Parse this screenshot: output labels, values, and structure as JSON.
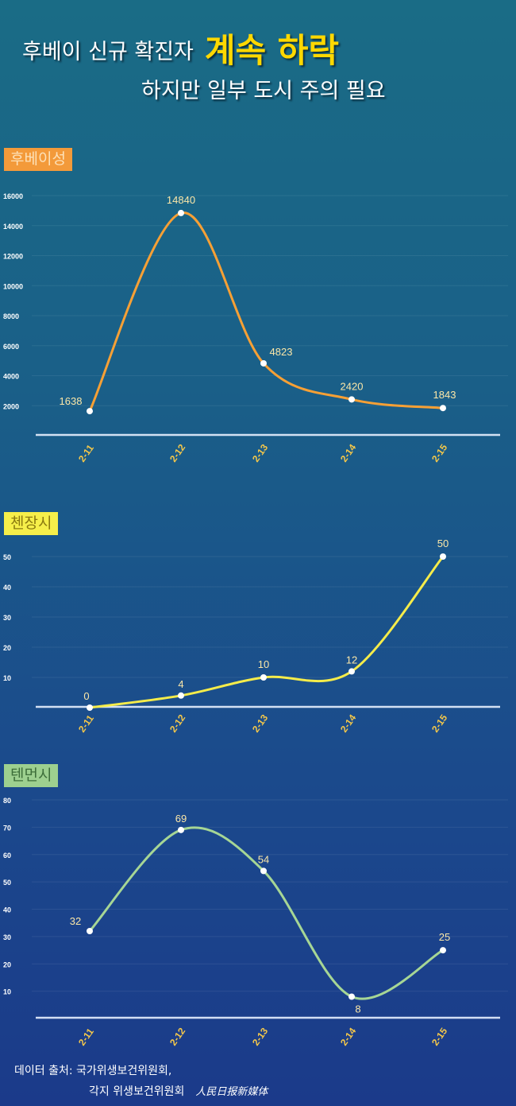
{
  "header": {
    "title_main": "후베이 신규 확진자",
    "title_highlight": "계속 하락",
    "subtitle": "하지만 일부 도시 주의 필요"
  },
  "footer": {
    "source_line1": "데이터 출처: 국가위생보건위원회,",
    "source_line2": "각지 위생보건위원회",
    "logo": "人民日报新媒体"
  },
  "chart_data": [
    {
      "type": "line",
      "title": "후베이성",
      "color": "#f7a035",
      "categories": [
        "2-11",
        "2-12",
        "2-13",
        "2-14",
        "2-15"
      ],
      "values": [
        1638,
        14840,
        4823,
        2420,
        1843
      ],
      "yticks": [
        2000,
        4000,
        6000,
        8000,
        10000,
        12000,
        14000,
        16000
      ],
      "ylim": [
        0,
        16000
      ],
      "grid": true
    },
    {
      "type": "line",
      "title": "첸장시",
      "color": "#f5ec4a",
      "categories": [
        "2-11",
        "2-12",
        "2-13",
        "2-14",
        "2-15"
      ],
      "values": [
        0,
        4,
        10,
        12,
        50
      ],
      "yticks": [
        10,
        20,
        30,
        40,
        50
      ],
      "ylim": [
        0,
        50
      ],
      "grid": true
    },
    {
      "type": "line",
      "title": "텐먼시",
      "color": "#a6d695",
      "categories": [
        "2-11",
        "2-12",
        "2-13",
        "2-14",
        "2-15"
      ],
      "values": [
        32,
        69,
        54,
        8,
        25
      ],
      "yticks": [
        10,
        20,
        30,
        40,
        50,
        60,
        70,
        80
      ],
      "ylim": [
        0,
        80
      ],
      "grid": true
    }
  ]
}
